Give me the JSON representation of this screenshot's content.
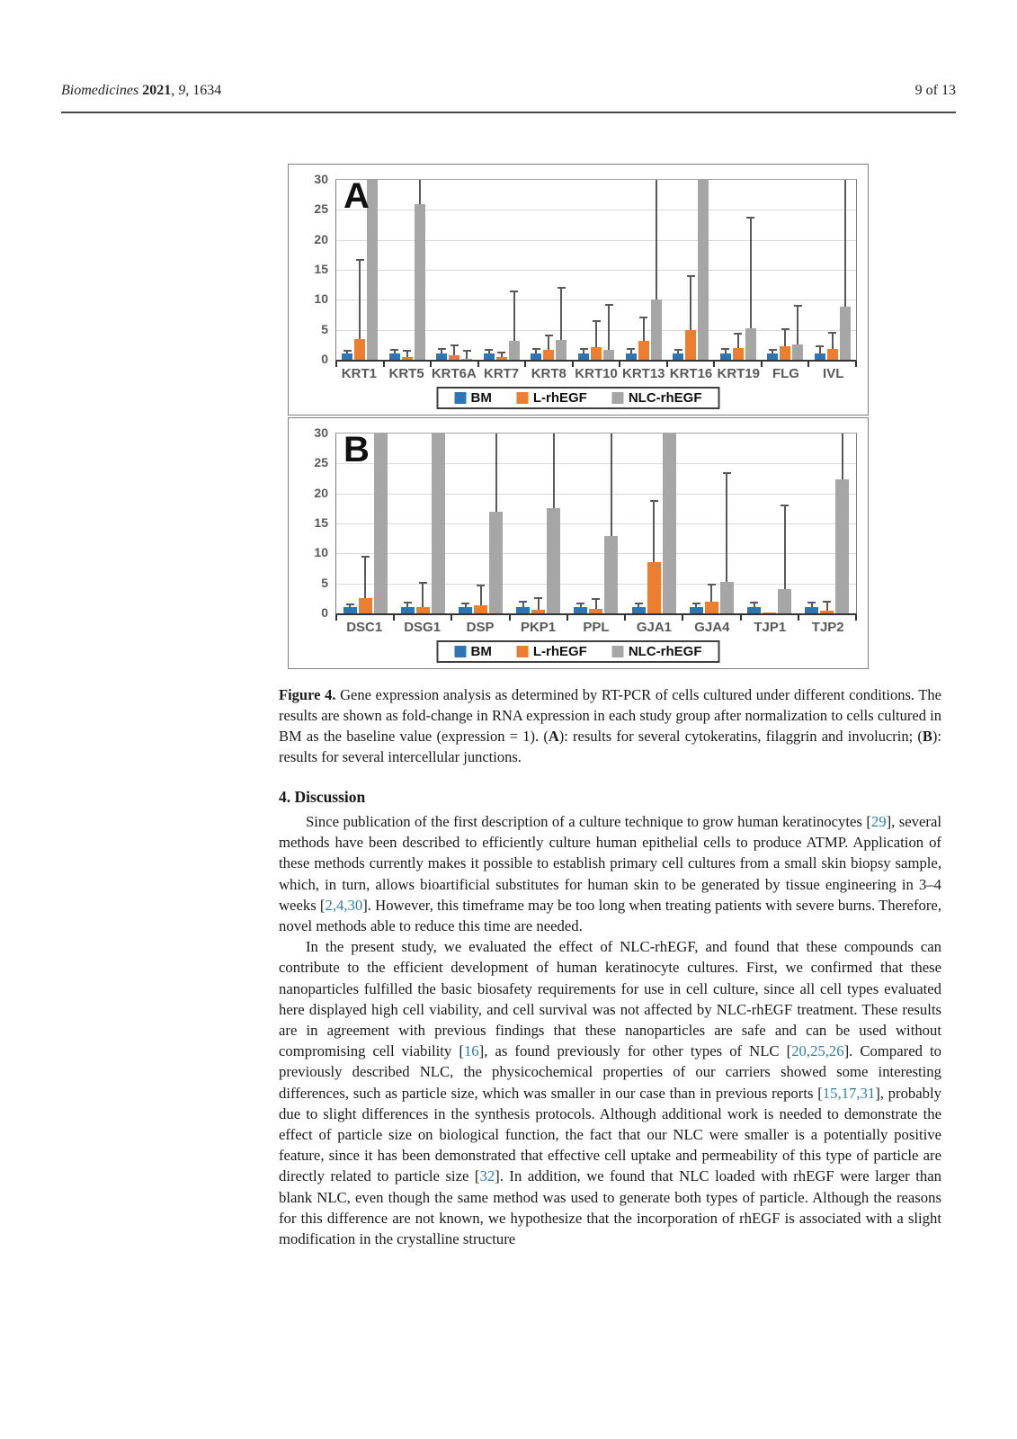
{
  "header": {
    "journal_segments": [
      {
        "text": "Biomedicines ",
        "italic": true
      },
      {
        "text": "2021",
        "bold": true
      },
      {
        "text": ", "
      },
      {
        "text": "9",
        "italic": true
      },
      {
        "text": ", 1634"
      }
    ],
    "page_info": "9 of 13"
  },
  "colors": {
    "bm": "#2e75b6",
    "l_rhegf": "#ed7d31",
    "nlc_rhegf": "#a6a6a6",
    "reference_link": "#2e7fae",
    "axis_label": "#595959"
  },
  "chart_data": [
    {
      "type": "bar",
      "panel_label": "A",
      "title": "",
      "xlabel": "",
      "ylabel": "",
      "ylim": [
        0,
        30
      ],
      "yticks": [
        0,
        5,
        10,
        15,
        20,
        25,
        30
      ],
      "grid": true,
      "legend_position": "bottom",
      "categories": [
        "KRT1",
        "KRT5",
        "KRT6A",
        "KRT7",
        "KRT8",
        "KRT10",
        "KRT13",
        "KRT16",
        "KRT19",
        "FLG",
        "IVL"
      ],
      "series": [
        {
          "name": "BM",
          "color": "#2e75b6",
          "values": [
            1,
            1,
            1,
            1,
            1,
            1,
            1,
            1,
            1,
            1,
            1
          ],
          "error_high": [
            1.4,
            1.5,
            1.6,
            1.5,
            1.6,
            1.6,
            1.6,
            1.5,
            1.6,
            1.5,
            2.1
          ]
        },
        {
          "name": "L-rhEGF",
          "color": "#ed7d31",
          "values": [
            3.4,
            0.5,
            0.8,
            0.4,
            1.7,
            2.1,
            3.1,
            4.9,
            1.9,
            2.2,
            1.8
          ],
          "error_high": [
            16.5,
            1.3,
            2.3,
            1.0,
            3.9,
            6.3,
            6.9,
            13.8,
            4.2,
            5.0,
            4.3
          ]
        },
        {
          "name": "NLC-rhEGF",
          "color": "#a6a6a6",
          "values": [
            30,
            26,
            0.2,
            3.2,
            3.3,
            1.6,
            10,
            30,
            5.3,
            2.5,
            8.8
          ],
          "error_high": [
            30,
            30,
            1.4,
            11.3,
            11.8,
            9.0,
            30,
            30,
            23.5,
            8.9,
            30
          ]
        }
      ]
    },
    {
      "type": "bar",
      "panel_label": "B",
      "title": "",
      "xlabel": "",
      "ylabel": "",
      "ylim": [
        0,
        30
      ],
      "yticks": [
        0,
        5,
        10,
        15,
        20,
        25,
        30
      ],
      "grid": true,
      "legend_position": "bottom",
      "categories": [
        "DSC1",
        "DSG1",
        "DSP",
        "PKP1",
        "PPL",
        "GJA1",
        "GJA4",
        "TJP1",
        "TJP2"
      ],
      "series": [
        {
          "name": "BM",
          "color": "#2e75b6",
          "values": [
            1,
            1,
            1,
            1.1,
            1,
            1,
            1,
            1,
            1
          ],
          "error_high": [
            1.4,
            1.7,
            1.5,
            1.8,
            1.5,
            1.5,
            1.5,
            1.6,
            1.6
          ]
        },
        {
          "name": "L-rhEGF",
          "color": "#ed7d31",
          "values": [
            2.5,
            1.1,
            1.4,
            0.6,
            0.8,
            8.5,
            2.0,
            0.1,
            0.5
          ],
          "error_high": [
            9.3,
            5.0,
            4.5,
            2.4,
            2.2,
            18.6,
            4.7,
            0.1,
            1.8
          ]
        },
        {
          "name": "NLC-rhEGF",
          "color": "#a6a6a6",
          "values": [
            30,
            30,
            17.0,
            17.6,
            12.9,
            30,
            5.2,
            4.0,
            22.3
          ],
          "error_high": [
            30,
            30,
            30,
            30,
            30,
            30,
            23.2,
            17.8,
            30
          ]
        }
      ]
    }
  ],
  "figure_caption": {
    "segments": [
      {
        "text": "Figure 4. ",
        "bold": true
      },
      {
        "text": "Gene expression analysis as determined by RT-PCR of cells cultured under different conditions. The results are shown as fold-change in RNA expression in each study group after normalization to cells cultured in BM as the baseline value (expression = 1). ("
      },
      {
        "text": "A",
        "bold": true
      },
      {
        "text": "): results for several cytokeratins, filaggrin and involucrin; ("
      },
      {
        "text": "B",
        "bold": true
      },
      {
        "text": "): results for several intercellular junctions."
      }
    ]
  },
  "section": {
    "heading": "4. Discussion"
  },
  "paragraphs": [
    [
      {
        "text": "Since publication of the first description of a culture technique to grow human keratinocytes "
      },
      {
        "ref": "29"
      },
      {
        "text": ", several methods have been described to efficiently culture human epithelial cells to produce ATMP. Application of these methods currently makes it possible to establish primary cell cultures from a small skin biopsy sample, which, in turn, allows bioartificial substitutes for human skin to be generated by tissue engineering in 3–4 weeks "
      },
      {
        "ref": "2,4,30"
      },
      {
        "text": ". However, this timeframe may be too long when treating patients with severe burns. Therefore, novel methods able to reduce this time are needed."
      }
    ],
    [
      {
        "text": "In the present study, we evaluated the effect of NLC-rhEGF, and found that these compounds can contribute to the efficient development of human keratinocyte cultures. First, we confirmed that these nanoparticles fulfilled the basic biosafety requirements for use in cell culture, since all cell types evaluated here displayed high cell viability, and cell survival was not affected by NLC-rhEGF treatment. These results are in agreement with previous findings that these nanoparticles are safe and can be used without compromising cell viability "
      },
      {
        "ref": "16"
      },
      {
        "text": ", as found previously for other types of NLC "
      },
      {
        "ref": "20,25,26"
      },
      {
        "text": ". Compared to previously described NLC, the physicochemical properties of our carriers showed some interesting differences, such as particle size, which was smaller in our case than in previous reports "
      },
      {
        "ref": "15,17,31"
      },
      {
        "text": ", probably due to slight differences in the synthesis protocols. Although additional work is needed to demonstrate the effect of particle size on biological function, the fact that our NLC were smaller is a potentially positive feature, since it has been demonstrated that effective cell uptake and permeability of this type of particle are directly related to particle size "
      },
      {
        "ref": "32"
      },
      {
        "text": ". In addition, we found that NLC loaded with rhEGF were larger than blank NLC, even though the same method was used to generate both types of particle. Although the reasons for this difference are not known, we hypothesize that the incorporation of rhEGF is associated with a slight modification in the crystalline structure"
      }
    ]
  ]
}
